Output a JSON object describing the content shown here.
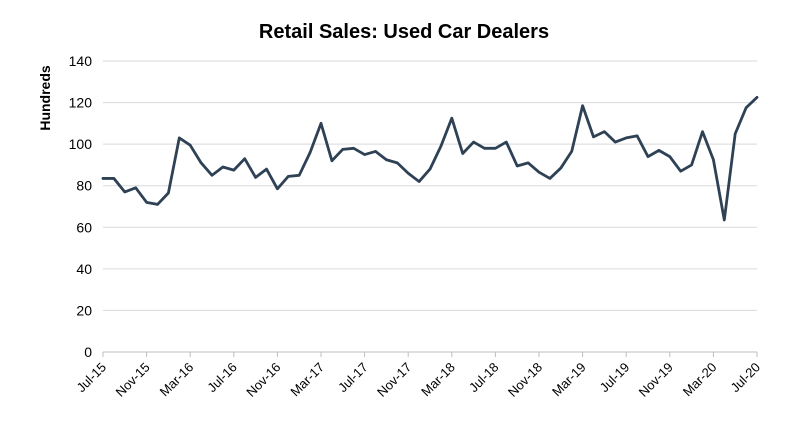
{
  "chart_data": {
    "type": "line",
    "title": "Retail Sales: Used Car Dealers",
    "xlabel": "",
    "ylabel": "Hundreds",
    "ylim": [
      0,
      140
    ],
    "yticks": [
      0,
      20,
      40,
      60,
      80,
      100,
      120,
      140
    ],
    "grid": "horizontal",
    "legend": "none",
    "x": [
      "Jul-15",
      "Aug-15",
      "Sep-15",
      "Oct-15",
      "Nov-15",
      "Dec-15",
      "Jan-16",
      "Feb-16",
      "Mar-16",
      "Apr-16",
      "May-16",
      "Jun-16",
      "Jul-16",
      "Aug-16",
      "Sep-16",
      "Oct-16",
      "Nov-16",
      "Dec-16",
      "Jan-17",
      "Feb-17",
      "Mar-17",
      "Apr-17",
      "May-17",
      "Jun-17",
      "Jul-17",
      "Aug-17",
      "Sep-17",
      "Oct-17",
      "Nov-17",
      "Dec-17",
      "Jan-18",
      "Feb-18",
      "Mar-18",
      "Apr-18",
      "May-18",
      "Jun-18",
      "Jul-18",
      "Aug-18",
      "Sep-18",
      "Oct-18",
      "Nov-18",
      "Dec-18",
      "Jan-19",
      "Feb-19",
      "Mar-19",
      "Apr-19",
      "May-19",
      "Jun-19",
      "Jul-19",
      "Aug-19",
      "Sep-19",
      "Oct-19",
      "Nov-19",
      "Dec-19",
      "Jan-20",
      "Feb-20",
      "Mar-20",
      "Apr-20",
      "May-20",
      "Jun-20",
      "Jul-20"
    ],
    "xtick_labels": [
      "Jul-15",
      "Nov-15",
      "Mar-16",
      "Jul-16",
      "Nov-16",
      "Mar-17",
      "Jul-17",
      "Nov-17",
      "Mar-18",
      "Jul-18",
      "Nov-18",
      "Mar-19",
      "Jul-19",
      "Nov-19",
      "Mar-20",
      "Jul-20"
    ],
    "series": [
      {
        "name": "Retail Sales: Used Car Dealers",
        "color": "#2e4155",
        "values": [
          83.5,
          83.5,
          77,
          79,
          72,
          71,
          76.5,
          103,
          99.5,
          91,
          85,
          89,
          87.5,
          93,
          84,
          88,
          78.5,
          84.5,
          85,
          96,
          110,
          92,
          97.5,
          98,
          95,
          96.5,
          92.5,
          91,
          86,
          82,
          88,
          99,
          112.5,
          95.5,
          101,
          98,
          98,
          101,
          89.5,
          91,
          86.5,
          83.5,
          88.5,
          96.5,
          118.5,
          103.5,
          106,
          101,
          103,
          104,
          94,
          97,
          94,
          87,
          90,
          106,
          92.5,
          63.5,
          105,
          117.5,
          122.5
        ]
      }
    ]
  }
}
